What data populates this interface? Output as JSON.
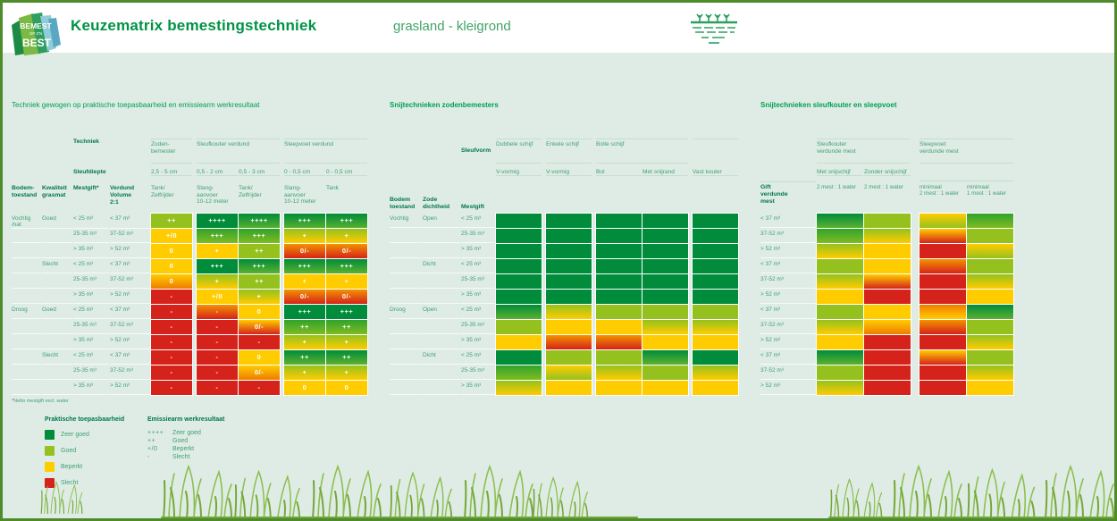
{
  "header": {
    "title": "Keuzematrix bemestingstechniek",
    "subtitle": "grasland - kleigrond",
    "logo": {
      "line1": "BEMEST",
      "line2": "OP Z'N",
      "line3": "BEST"
    }
  },
  "palette": {
    "dg": [
      "#008c3a",
      "#008c3a"
    ],
    "dgl": [
      "#008c3a",
      "#5cb130"
    ],
    "mg": [
      "#31a32c",
      "#7fbb22"
    ],
    "lg": [
      "#95c11f",
      "#95c11f"
    ],
    "lgy": [
      "#95c11f",
      "#ffcc00"
    ],
    "ylg": [
      "#ffcc00",
      "#95c11f"
    ],
    "y": [
      "#ffcc00",
      "#ffcc00"
    ],
    "yo": [
      "#ffcc00",
      "#ef7d00"
    ],
    "oy": [
      "#ef7d00",
      "#ffcc00"
    ],
    "yr": [
      "#ffcc00",
      "#d5231b"
    ],
    "or": [
      "#f39200",
      "#d5231b"
    ],
    "r": [
      "#d5231b",
      "#d5231b"
    ]
  },
  "t1": {
    "section_title": "Techniek gewogen op praktische toepasbaarheid en emissiearm werkresultaat",
    "h": {
      "techniek": "Techniek",
      "groups": [
        "Zoden-\nbemester",
        "Sleufkouter verdund",
        "Sleepvoet verdund"
      ],
      "sleufdiepte": "Sleufdiepte",
      "depths": [
        "2,5 - 5 cm",
        "0,5 - 2 cm",
        "0,5 - 3 cm",
        "0 - 0,5 cm",
        "0 - 0,5 cm"
      ],
      "cols": [
        "Bodem-\ntoestand",
        "Kwaliteit\ngrasmat",
        "Mestgift*",
        "Verdund\nVolume\n2:1"
      ],
      "machines": [
        "Tank/\nZelfrijder",
        "Slang-\naanvoer\n10-12 meter",
        "Tank/\nZelfrijder",
        "Slang-\naanvoer\n10-12 meter",
        "Tank"
      ]
    },
    "rows": [
      {
        "b": "Vochtig\n/nat",
        "k": "Goed",
        "m": "< 25 m³",
        "v": "< 37 m³",
        "cells": [
          {
            "t": "++",
            "c": "lg"
          },
          {
            "t": "++++",
            "c": "dg"
          },
          {
            "t": "++++",
            "c": "dgl"
          },
          {
            "t": "+++",
            "c": "dgl"
          },
          {
            "t": "+++",
            "c": "dgl"
          }
        ]
      },
      {
        "b": "",
        "k": "",
        "m": "25-35 m³",
        "v": "37-52 m³",
        "cells": [
          {
            "t": "+/0",
            "c": "y"
          },
          {
            "t": "+++",
            "c": "mg"
          },
          {
            "t": "+++",
            "c": "mg"
          },
          {
            "t": "+",
            "c": "lgy"
          },
          {
            "t": "+",
            "c": "lgy"
          }
        ]
      },
      {
        "b": "",
        "k": "",
        "m": "> 35 m³",
        "v": "> 52 m³",
        "cells": [
          {
            "t": "0",
            "c": "y"
          },
          {
            "t": "+",
            "c": "y"
          },
          {
            "t": "++",
            "c": "lg"
          },
          {
            "t": "0/-",
            "c": "or"
          },
          {
            "t": "0/-",
            "c": "or"
          }
        ]
      },
      {
        "b": "",
        "k": "Slecht",
        "m": "< 25 m³",
        "v": "< 37 m³",
        "cells": [
          {
            "t": "0",
            "c": "y"
          },
          {
            "t": "+++",
            "c": "dg"
          },
          {
            "t": "+++",
            "c": "dgl"
          },
          {
            "t": "+++",
            "c": "dgl"
          },
          {
            "t": "+++",
            "c": "dgl"
          }
        ]
      },
      {
        "b": "",
        "k": "",
        "m": "25-35 m³",
        "v": "37-52 m³",
        "cells": [
          {
            "t": "0",
            "c": "yo"
          },
          {
            "t": "+",
            "c": "lgy"
          },
          {
            "t": "++",
            "c": "lg"
          },
          {
            "t": "+",
            "c": "y"
          },
          {
            "t": "+",
            "c": "y"
          }
        ]
      },
      {
        "b": "",
        "k": "",
        "m": "> 35 m³",
        "v": "> 52 m³",
        "cells": [
          {
            "t": "-",
            "c": "r"
          },
          {
            "t": "+/0",
            "c": "y"
          },
          {
            "t": "+",
            "c": "lgy"
          },
          {
            "t": "0/-",
            "c": "or"
          },
          {
            "t": "0/-",
            "c": "or"
          }
        ]
      },
      {
        "b": "Droog",
        "k": "Goed",
        "m": "< 25 m³",
        "v": "< 37 m³",
        "cells": [
          {
            "t": "-",
            "c": "r"
          },
          {
            "t": "-",
            "c": "or"
          },
          {
            "t": "0",
            "c": "y"
          },
          {
            "t": "+++",
            "c": "dg"
          },
          {
            "t": "+++",
            "c": "dg"
          }
        ]
      },
      {
        "b": "",
        "k": "",
        "m": "25-35 m³",
        "v": "37-52 m³",
        "cells": [
          {
            "t": "-",
            "c": "r"
          },
          {
            "t": "-",
            "c": "r"
          },
          {
            "t": "0/-",
            "c": "yr"
          },
          {
            "t": "++",
            "c": "mg"
          },
          {
            "t": "++",
            "c": "mg"
          }
        ]
      },
      {
        "b": "",
        "k": "",
        "m": "> 35 m³",
        "v": "> 52 m³",
        "cells": [
          {
            "t": "-",
            "c": "r"
          },
          {
            "t": "-",
            "c": "r"
          },
          {
            "t": "-",
            "c": "r"
          },
          {
            "t": "+",
            "c": "lgy"
          },
          {
            "t": "+",
            "c": "lgy"
          }
        ]
      },
      {
        "b": "",
        "k": "Slecht",
        "m": "< 25 m³",
        "v": "< 37 m³",
        "cells": [
          {
            "t": "-",
            "c": "r"
          },
          {
            "t": "-",
            "c": "r"
          },
          {
            "t": "0",
            "c": "y"
          },
          {
            "t": "++",
            "c": "dgl"
          },
          {
            "t": "++",
            "c": "dgl"
          }
        ]
      },
      {
        "b": "",
        "k": "",
        "m": "25-35 m³",
        "v": "37-52 m³",
        "cells": [
          {
            "t": "-",
            "c": "r"
          },
          {
            "t": "-",
            "c": "r"
          },
          {
            "t": "0/-",
            "c": "yo"
          },
          {
            "t": "+",
            "c": "lgy"
          },
          {
            "t": "+",
            "c": "lgy"
          }
        ]
      },
      {
        "b": "",
        "k": "",
        "m": "> 35 m³",
        "v": "> 52 m³",
        "cells": [
          {
            "t": "-",
            "c": "r"
          },
          {
            "t": "-",
            "c": "r"
          },
          {
            "t": "-",
            "c": "r"
          },
          {
            "t": "0",
            "c": "y"
          },
          {
            "t": "0",
            "c": "y"
          }
        ]
      }
    ],
    "footnote": "*Netto mestgift excl. water"
  },
  "t2": {
    "section_title": "Snijtechnieken zodenbemesters",
    "h": {
      "sleufvorm": "Sleufvorm",
      "groups": [
        "Dubbele schijf",
        "Enkele schijf",
        "Bolle schijf"
      ],
      "subs": [
        "V-vormig",
        "V-vormig",
        "Bol",
        "Met snijrand",
        "Vast kouter"
      ],
      "cols": [
        "Bodem\ntoestand",
        "Zode\ndichtheid",
        "Mestgift"
      ]
    },
    "rows": [
      {
        "b": "Vochtig",
        "z": "Open",
        "m": "< 25 m³",
        "cells": [
          "dg",
          "dg",
          "dg",
          "dg",
          "dg"
        ]
      },
      {
        "b": "",
        "z": "",
        "m": "25-35 m³",
        "cells": [
          "dg",
          "dg",
          "dg",
          "dg",
          "dg"
        ]
      },
      {
        "b": "",
        "z": "",
        "m": "> 35 m³",
        "cells": [
          "dg",
          "dg",
          "dg",
          "dg",
          "dg"
        ]
      },
      {
        "b": "",
        "z": "Dicht",
        "m": "< 25 m³",
        "cells": [
          "dg",
          "dg",
          "dg",
          "dg",
          "dg"
        ]
      },
      {
        "b": "",
        "z": "",
        "m": "25-35 m³",
        "cells": [
          "dg",
          "dg",
          "dg",
          "dg",
          "dg"
        ]
      },
      {
        "b": "",
        "z": "",
        "m": "> 35 m³",
        "cells": [
          "dg",
          "dg",
          "dg",
          "dg",
          "dg"
        ]
      },
      {
        "b": "Droog",
        "z": "Open",
        "m": "< 25 m³",
        "cells": [
          "dgl",
          "lgy",
          "lg",
          "lg",
          "lg"
        ]
      },
      {
        "b": "",
        "z": "",
        "m": "25-35 m³",
        "cells": [
          "lg",
          "y",
          "y",
          "lgy",
          "lgy"
        ]
      },
      {
        "b": "",
        "z": "",
        "m": "> 35 m³",
        "cells": [
          "y",
          "or",
          "or",
          "y",
          "y"
        ]
      },
      {
        "b": "",
        "z": "Dicht",
        "m": "< 25 m³",
        "cells": [
          "dg",
          "lg",
          "lg",
          "dgl",
          "dg"
        ]
      },
      {
        "b": "",
        "z": "",
        "m": "25-35 m³",
        "cells": [
          "mg",
          "ylg",
          "lgy",
          "lg",
          "lgy"
        ]
      },
      {
        "b": "",
        "z": "",
        "m": "> 35 m³",
        "cells": [
          "lgy",
          "y",
          "y",
          "y",
          "y"
        ]
      }
    ]
  },
  "t3": {
    "section_title": "Snijtechnieken sleufkouter en sleepvoet",
    "h": {
      "groups": [
        "Sleufkouter\nverdunde mest",
        "Sleepvoet\nverdunde mest"
      ],
      "subs": [
        "Met snijschijf",
        "Zonder snijschijf"
      ],
      "gift": "Gift\nverdunde\nmest",
      "ratios": [
        "2 mest : 1 water",
        "2 mest : 1 water",
        "minimaal\n2 mest : 1 water",
        "minimaal\n1 mest : 1 water"
      ]
    },
    "rows": [
      {
        "g": "< 37 m³",
        "cells": [
          "dgl",
          "lg",
          "ylg",
          "mg"
        ]
      },
      {
        "g": "37-52 m³",
        "cells": [
          "mg",
          "lgy",
          "yr",
          "lg"
        ]
      },
      {
        "g": "> 52 m³",
        "cells": [
          "lgy",
          "y",
          "r",
          "ylg"
        ]
      },
      {
        "g": "< 37 m³",
        "cells": [
          "lg",
          "y",
          "or",
          "lg"
        ]
      },
      {
        "g": "37-52 m³",
        "cells": [
          "lgy",
          "yr",
          "r",
          "lgy"
        ]
      },
      {
        "g": "> 52 m³",
        "cells": [
          "y",
          "r",
          "r",
          "y"
        ]
      },
      {
        "g": "< 37 m³",
        "cells": [
          "lg",
          "y",
          "oy",
          "dgl"
        ]
      },
      {
        "g": "37-52 m³",
        "cells": [
          "lgy",
          "yo",
          "or",
          "lg"
        ]
      },
      {
        "g": "> 52 m³",
        "cells": [
          "y",
          "r",
          "r",
          "lgy"
        ]
      },
      {
        "g": "< 37 m³",
        "cells": [
          "dgl",
          "r",
          "yr",
          "lg"
        ]
      },
      {
        "g": "37-52 m³",
        "cells": [
          "lg",
          "r",
          "r",
          "lgy"
        ]
      },
      {
        "g": "> 52 m³",
        "cells": [
          "lgy",
          "r",
          "r",
          "y"
        ]
      }
    ]
  },
  "legend": {
    "practical": {
      "title": "Praktische toepasbaarheid",
      "items": [
        {
          "label": "Zeer goed",
          "c": "dg"
        },
        {
          "label": "Goed",
          "c": "lg"
        },
        {
          "label": "Beperkt",
          "c": "y"
        },
        {
          "label": "Slecht",
          "c": "r"
        }
      ]
    },
    "emission": {
      "title": "Emissiearm werkresultaat",
      "items": [
        {
          "symbol": "++++",
          "label": "Zeer goed"
        },
        {
          "symbol": "++",
          "label": "Goed"
        },
        {
          "symbol": "+/0",
          "label": "Beperkt"
        },
        {
          "symbol": "-",
          "label": "Slecht"
        }
      ]
    }
  }
}
